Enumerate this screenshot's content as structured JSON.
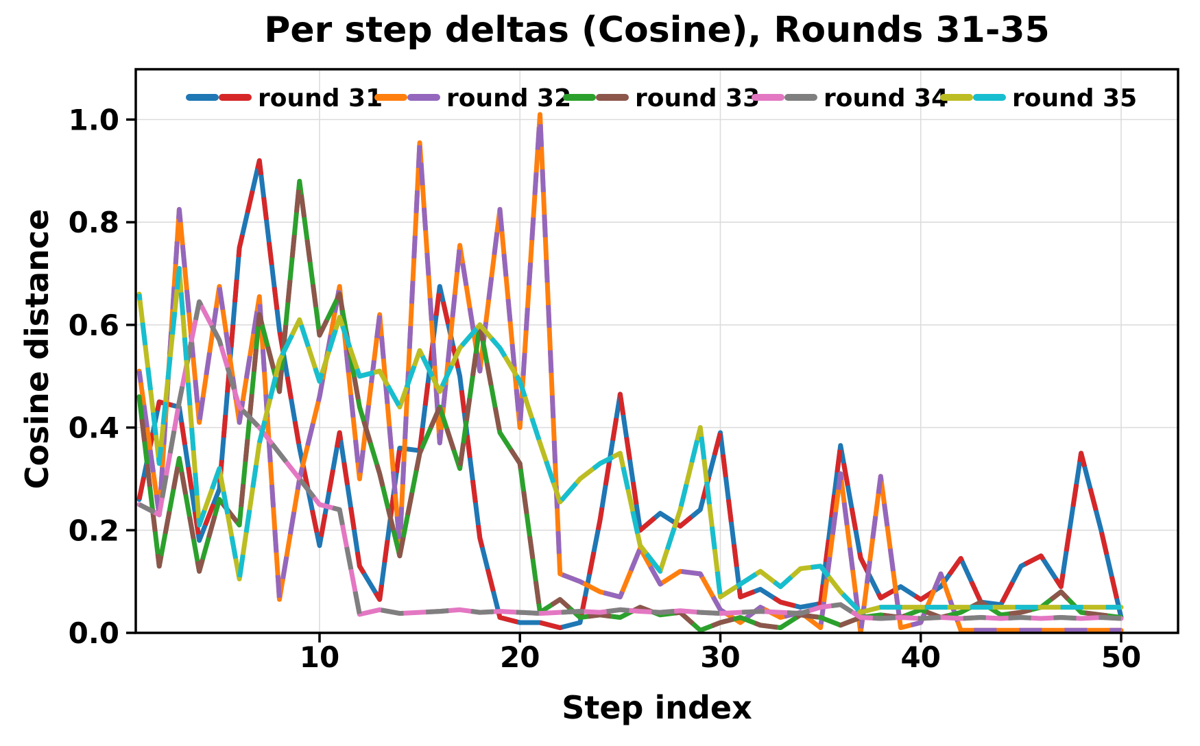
{
  "chart_data": {
    "type": "line",
    "title": "Per step deltas (Cosine), Rounds 31-35",
    "xlabel": "Step index",
    "ylabel": "Cosine distance",
    "x_ticks": [
      10,
      20,
      30,
      40,
      50
    ],
    "y_ticks": [
      0.0,
      0.2,
      0.4,
      0.6,
      0.8,
      1.0
    ],
    "xlim": [
      0.83,
      52.84
    ],
    "ylim": [
      0,
      1.098
    ],
    "grid": true,
    "legend_position": "upper center inside axes",
    "line_style": "two-color alternating dashes",
    "x": [
      1,
      2,
      3,
      4,
      5,
      6,
      7,
      8,
      9,
      10,
      11,
      12,
      13,
      14,
      15,
      16,
      17,
      18,
      19,
      20,
      21,
      22,
      23,
      24,
      25,
      26,
      27,
      28,
      29,
      30,
      31,
      32,
      33,
      34,
      35,
      36,
      37,
      38,
      39,
      40,
      41,
      42,
      43,
      44,
      45,
      46,
      47,
      48,
      49,
      50
    ],
    "series": [
      {
        "name": "round 31",
        "colors": [
          "#1f77b4",
          "#d62728"
        ],
        "values": [
          0.26,
          0.45,
          0.44,
          0.18,
          0.28,
          0.75,
          0.92,
          0.59,
          0.36,
          0.17,
          0.39,
          0.13,
          0.065,
          0.36,
          0.355,
          0.675,
          0.5,
          0.185,
          0.03,
          0.02,
          0.02,
          0.01,
          0.02,
          0.22,
          0.465,
          0.2,
          0.233,
          0.208,
          0.24,
          0.39,
          0.07,
          0.085,
          0.06,
          0.05,
          0.057,
          0.365,
          0.146,
          0.068,
          0.09,
          0.065,
          0.09,
          0.145,
          0.06,
          0.055,
          0.13,
          0.15,
          0.09,
          0.35,
          0.2,
          0.03
        ]
      },
      {
        "name": "round 32",
        "colors": [
          "#ff7f0e",
          "#9467bd"
        ],
        "values": [
          0.51,
          0.23,
          0.825,
          0.41,
          0.675,
          0.41,
          0.655,
          0.065,
          0.3,
          0.46,
          0.675,
          0.3,
          0.62,
          0.17,
          0.955,
          0.37,
          0.755,
          0.51,
          0.825,
          0.4,
          1.01,
          0.115,
          0.1,
          0.08,
          0.07,
          0.165,
          0.095,
          0.12,
          0.115,
          0.045,
          0.02,
          0.05,
          0.03,
          0.04,
          0.01,
          0.31,
          0.0,
          0.305,
          0.01,
          0.02,
          0.115,
          0.005,
          0.005,
          0.005,
          0.005,
          0.005,
          0.005,
          0.005,
          0.005,
          0.005
        ]
      },
      {
        "name": "round 33",
        "colors": [
          "#2ca02c",
          "#8c564b"
        ],
        "values": [
          0.46,
          0.13,
          0.34,
          0.12,
          0.26,
          0.21,
          0.62,
          0.47,
          0.88,
          0.58,
          0.66,
          0.44,
          0.31,
          0.15,
          0.35,
          0.44,
          0.32,
          0.6,
          0.39,
          0.33,
          0.04,
          0.065,
          0.03,
          0.035,
          0.03,
          0.05,
          0.035,
          0.04,
          0.005,
          0.02,
          0.03,
          0.015,
          0.01,
          0.035,
          0.03,
          0.015,
          0.03,
          0.035,
          0.03,
          0.045,
          0.03,
          0.04,
          0.06,
          0.035,
          0.04,
          0.05,
          0.08,
          0.04,
          0.035,
          0.03
        ]
      },
      {
        "name": "round 34",
        "colors": [
          "#e377c2",
          "#7f7f7f"
        ],
        "values": [
          0.25,
          0.23,
          0.45,
          0.645,
          0.57,
          0.44,
          0.4,
          0.35,
          0.3,
          0.25,
          0.24,
          0.036,
          0.045,
          0.038,
          0.04,
          0.042,
          0.045,
          0.04,
          0.042,
          0.04,
          0.038,
          0.04,
          0.042,
          0.04,
          0.045,
          0.042,
          0.04,
          0.043,
          0.04,
          0.038,
          0.04,
          0.042,
          0.04,
          0.038,
          0.05,
          0.055,
          0.03,
          0.028,
          0.03,
          0.028,
          0.03,
          0.028,
          0.03,
          0.028,
          0.03,
          0.028,
          0.03,
          0.028,
          0.03,
          0.028
        ]
      },
      {
        "name": "round 35",
        "colors": [
          "#bcbd22",
          "#17becf"
        ],
        "values": [
          0.66,
          0.33,
          0.71,
          0.21,
          0.32,
          0.105,
          0.37,
          0.53,
          0.61,
          0.49,
          0.615,
          0.5,
          0.51,
          0.44,
          0.55,
          0.47,
          0.555,
          0.6,
          0.555,
          0.49,
          0.37,
          0.255,
          0.3,
          0.33,
          0.35,
          0.17,
          0.12,
          0.24,
          0.4,
          0.07,
          0.095,
          0.12,
          0.09,
          0.125,
          0.13,
          0.08,
          0.04,
          0.05,
          0.05,
          0.05,
          0.05,
          0.05,
          0.05,
          0.05,
          0.05,
          0.05,
          0.05,
          0.05,
          0.05,
          0.05
        ]
      }
    ]
  },
  "style": {
    "grid_color": "#dcdcdc",
    "spine_color": "#000000",
    "tick_label_color": "#000000",
    "background": "#ffffff"
  }
}
